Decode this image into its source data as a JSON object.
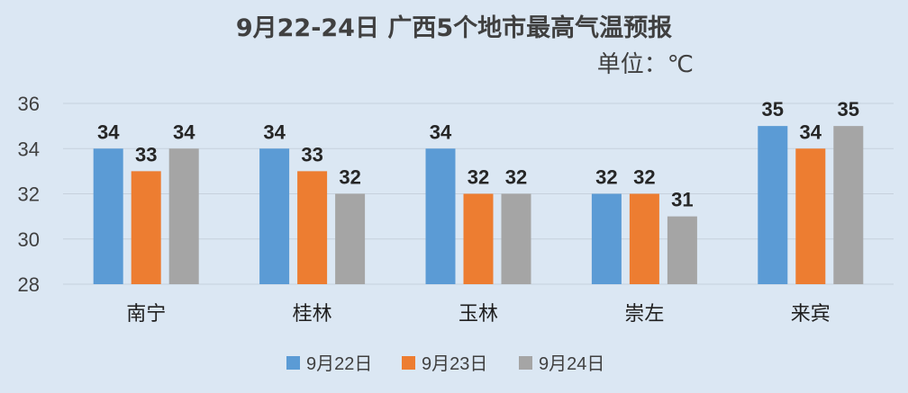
{
  "chart_data": {
    "type": "bar",
    "title": "9月22-24日 广西5个地市最高气温预报",
    "unit_label": "单位：℃",
    "categories": [
      "南宁",
      "桂林",
      "玉林",
      "崇左",
      "来宾"
    ],
    "series": [
      {
        "name": "9月22日",
        "color": "#5b9bd5",
        "values": [
          34,
          34,
          34,
          32,
          35
        ]
      },
      {
        "name": "9月23日",
        "color": "#ed7d31",
        "values": [
          33,
          33,
          32,
          32,
          34
        ]
      },
      {
        "name": "9月24日",
        "color": "#a5a5a5",
        "values": [
          34,
          32,
          32,
          31,
          35
        ]
      }
    ],
    "y_ticks": [
      28,
      30,
      32,
      34,
      36
    ],
    "ylim": [
      28,
      36
    ],
    "grid": true,
    "legend_position": "bottom",
    "data_labels": true
  }
}
